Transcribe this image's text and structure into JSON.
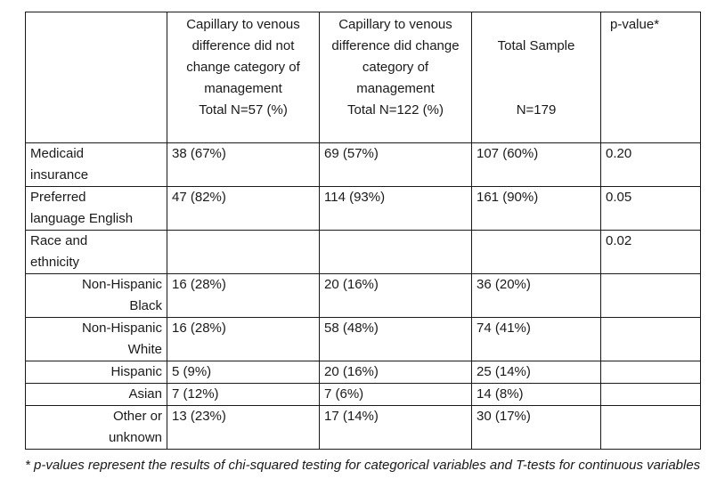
{
  "table": {
    "headers": [
      "",
      "Capillary to venous difference did not change category of management\nTotal N=57 (%)",
      "Capillary to venous difference did change category of management\nTotal N=122 (%)",
      "Total Sample",
      "p-value*"
    ],
    "total_sample_n": "N=179",
    "rows": [
      {
        "label": "Medicaid\ninsurance",
        "c1": "38 (67%)",
        "c2": "69  (57%)",
        "c3": "107 (60%)",
        "p": "0.20"
      },
      {
        "label": "Preferred\nlanguage English",
        "c1": "47 (82%)",
        "c2": "114 (93%)",
        "c3": "161 (90%)",
        "p": "0.05"
      },
      {
        "label": "Race and\nethnicity",
        "c1": "",
        "c2": "",
        "c3": "",
        "p": "0.02"
      },
      {
        "label": "Non-Hispanic\nBlack",
        "c1": "16 (28%)",
        "c2": "20  (16%)",
        "c3": "36  (20%)",
        "p": ""
      },
      {
        "label": "Non-Hispanic\nWhite",
        "c1": "16 (28%)",
        "c2": "58  (48%)",
        "c3": "74  (41%)",
        "p": ""
      },
      {
        "label": "Hispanic",
        "c1": "5   (9%)",
        "c2": "20  (16%)",
        "c3": "25  (14%)",
        "p": ""
      },
      {
        "label": "Asian",
        "c1": "7   (12%)",
        "c2": "7    (6%)",
        "c3": "14  (8%)",
        "p": ""
      },
      {
        "label": "Other or\nunknown",
        "c1": "13  (23%)",
        "c2": "17  (14%)",
        "c3": "30  (17%)",
        "p": ""
      }
    ]
  },
  "footnote": "* p-values represent the results of chi-squared testing for categorical variables and T-tests for continuous variables"
}
